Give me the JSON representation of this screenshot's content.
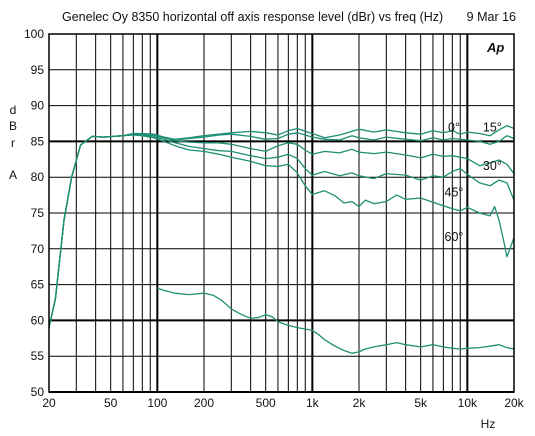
{
  "chart_data": {
    "type": "line",
    "title": "Genelec Oy 8350  horizontal off axis response level (dBr) vs freq (Hz)",
    "date": "9 Mar 16",
    "logo_text": "Ap",
    "xlabel": "Hz",
    "ylabel": [
      "d",
      "B",
      "r",
      "A"
    ],
    "x_scale": "log",
    "xlim": [
      20,
      20000
    ],
    "ylim": [
      50,
      100
    ],
    "grid": true,
    "line_color": "#1e8f74",
    "yticks": [
      "100",
      "95",
      "90",
      "85",
      "80",
      "75",
      "70",
      "65",
      "60",
      "55",
      "50"
    ],
    "xticks": [
      {
        "value": 20,
        "label": "20"
      },
      {
        "value": 50,
        "label": "50"
      },
      {
        "value": 100,
        "label": "100"
      },
      {
        "value": 200,
        "label": "200"
      },
      {
        "value": 500,
        "label": "500"
      },
      {
        "value": 1000,
        "label": "1k"
      },
      {
        "value": 2000,
        "label": "2k"
      },
      {
        "value": 5000,
        "label": "5k"
      },
      {
        "value": 10000,
        "label": "10k"
      },
      {
        "value": 20000,
        "label": "20k"
      }
    ],
    "annotations": [
      {
        "text": "0°",
        "x": 8200,
        "y": 86.4
      },
      {
        "text": "15°",
        "x": 14500,
        "y": 86.4
      },
      {
        "text": "30°",
        "x": 14500,
        "y": 81.0
      },
      {
        "text": "45°",
        "x": 8200,
        "y": 77.3
      },
      {
        "text": "60°",
        "x": 8200,
        "y": 71.1
      }
    ],
    "series": [
      {
        "name": "0°",
        "points": [
          [
            20,
            59
          ],
          [
            22,
            63
          ],
          [
            25,
            74
          ],
          [
            28,
            80
          ],
          [
            32,
            84.5
          ],
          [
            38,
            85.7
          ],
          [
            45,
            85.6
          ],
          [
            60,
            85.8
          ],
          [
            70,
            86.1
          ],
          [
            80,
            86.1
          ],
          [
            95,
            86.0
          ],
          [
            110,
            85.6
          ],
          [
            130,
            85.3
          ],
          [
            160,
            85.5
          ],
          [
            200,
            85.8
          ],
          [
            250,
            86.0
          ],
          [
            300,
            86.2
          ],
          [
            400,
            86.4
          ],
          [
            500,
            86.2
          ],
          [
            600,
            85.9
          ],
          [
            700,
            86.5
          ],
          [
            800,
            86.8
          ],
          [
            900,
            86.4
          ],
          [
            1000,
            86.1
          ],
          [
            1200,
            85.5
          ],
          [
            1500,
            85.9
          ],
          [
            1800,
            86.4
          ],
          [
            2000,
            86.7
          ],
          [
            2500,
            86.3
          ],
          [
            3000,
            86.6
          ],
          [
            4000,
            86.2
          ],
          [
            5000,
            86.0
          ],
          [
            6000,
            86.5
          ],
          [
            7000,
            86.2
          ],
          [
            8000,
            86.5
          ],
          [
            9000,
            86.0
          ],
          [
            10000,
            86.3
          ],
          [
            12000,
            86.1
          ],
          [
            14000,
            85.8
          ],
          [
            16000,
            86.6
          ],
          [
            18000,
            87.2
          ],
          [
            20000,
            86.8
          ]
        ]
      },
      {
        "name": "15°",
        "points": [
          [
            20,
            59
          ],
          [
            22,
            63
          ],
          [
            25,
            74
          ],
          [
            28,
            80
          ],
          [
            32,
            84.5
          ],
          [
            38,
            85.7
          ],
          [
            45,
            85.6
          ],
          [
            60,
            85.8
          ],
          [
            70,
            86.0
          ],
          [
            80,
            86.0
          ],
          [
            95,
            86.0
          ],
          [
            110,
            85.6
          ],
          [
            130,
            85.2
          ],
          [
            160,
            85.4
          ],
          [
            200,
            85.6
          ],
          [
            250,
            85.9
          ],
          [
            300,
            86.0
          ],
          [
            400,
            85.7
          ],
          [
            500,
            85.3
          ],
          [
            600,
            85.4
          ],
          [
            700,
            86.0
          ],
          [
            800,
            86.2
          ],
          [
            900,
            85.9
          ],
          [
            1000,
            85.6
          ],
          [
            1200,
            85.3
          ],
          [
            1500,
            85.2
          ],
          [
            1800,
            85.8
          ],
          [
            2000,
            85.5
          ],
          [
            2500,
            85.2
          ],
          [
            3000,
            85.6
          ],
          [
            4000,
            85.3
          ],
          [
            5000,
            85.1
          ],
          [
            6000,
            85.5
          ],
          [
            7000,
            85.2
          ],
          [
            8000,
            85.4
          ],
          [
            10000,
            85.2
          ],
          [
            12000,
            85.0
          ],
          [
            14000,
            84.6
          ],
          [
            16000,
            85.0
          ],
          [
            18000,
            85.8
          ],
          [
            20000,
            85.4
          ]
        ]
      },
      {
        "name": "30°",
        "points": [
          [
            20,
            59
          ],
          [
            22,
            63
          ],
          [
            25,
            74
          ],
          [
            28,
            80
          ],
          [
            32,
            84.5
          ],
          [
            38,
            85.7
          ],
          [
            45,
            85.6
          ],
          [
            60,
            85.8
          ],
          [
            70,
            86.0
          ],
          [
            80,
            86.0
          ],
          [
            95,
            85.8
          ],
          [
            110,
            85.5
          ],
          [
            130,
            85.1
          ],
          [
            160,
            84.9
          ],
          [
            200,
            84.8
          ],
          [
            250,
            84.8
          ],
          [
            300,
            84.6
          ],
          [
            400,
            84.0
          ],
          [
            500,
            83.6
          ],
          [
            600,
            84.4
          ],
          [
            700,
            84.8
          ],
          [
            800,
            84.6
          ],
          [
            900,
            83.8
          ],
          [
            1000,
            83.2
          ],
          [
            1200,
            83.6
          ],
          [
            1500,
            83.4
          ],
          [
            1800,
            83.9
          ],
          [
            2000,
            83.5
          ],
          [
            2500,
            83.3
          ],
          [
            3000,
            83.5
          ],
          [
            4000,
            83.1
          ],
          [
            5000,
            82.7
          ],
          [
            6000,
            83.2
          ],
          [
            7000,
            82.9
          ],
          [
            8000,
            83.0
          ],
          [
            10000,
            82.6
          ],
          [
            12000,
            81.6
          ],
          [
            14000,
            82.0
          ],
          [
            16000,
            82.4
          ],
          [
            18000,
            81.8
          ],
          [
            20000,
            80.5
          ]
        ]
      },
      {
        "name": "45°",
        "points": [
          [
            20,
            59
          ],
          [
            22,
            63
          ],
          [
            25,
            74
          ],
          [
            28,
            80
          ],
          [
            32,
            84.5
          ],
          [
            38,
            85.7
          ],
          [
            45,
            85.6
          ],
          [
            60,
            85.8
          ],
          [
            70,
            86.0
          ],
          [
            80,
            85.9
          ],
          [
            95,
            85.6
          ],
          [
            110,
            85.3
          ],
          [
            130,
            84.8
          ],
          [
            160,
            84.3
          ],
          [
            200,
            84.0
          ],
          [
            250,
            83.7
          ],
          [
            300,
            83.6
          ],
          [
            400,
            83.0
          ],
          [
            500,
            82.6
          ],
          [
            600,
            82.8
          ],
          [
            700,
            83.2
          ],
          [
            800,
            82.6
          ],
          [
            900,
            81.2
          ],
          [
            1000,
            80.3
          ],
          [
            1200,
            80.8
          ],
          [
            1500,
            80.2
          ],
          [
            1800,
            80.6
          ],
          [
            2000,
            80.2
          ],
          [
            2500,
            79.8
          ],
          [
            3000,
            80.5
          ],
          [
            4000,
            80.3
          ],
          [
            5000,
            79.6
          ],
          [
            6000,
            80.2
          ],
          [
            7000,
            80.0
          ],
          [
            8000,
            80.8
          ],
          [
            9000,
            81.2
          ],
          [
            10000,
            80.4
          ],
          [
            12000,
            79.2
          ],
          [
            14000,
            78.8
          ],
          [
            16000,
            79.6
          ],
          [
            18000,
            79.2
          ],
          [
            20000,
            76.8
          ]
        ]
      },
      {
        "name": "60°",
        "points": [
          [
            20,
            59
          ],
          [
            22,
            63
          ],
          [
            25,
            74
          ],
          [
            28,
            80
          ],
          [
            32,
            84.5
          ],
          [
            38,
            85.7
          ],
          [
            45,
            85.6
          ],
          [
            60,
            85.8
          ],
          [
            70,
            85.9
          ],
          [
            80,
            85.8
          ],
          [
            95,
            85.5
          ],
          [
            110,
            85.0
          ],
          [
            130,
            84.4
          ],
          [
            160,
            83.8
          ],
          [
            200,
            83.6
          ],
          [
            250,
            83.2
          ],
          [
            300,
            82.8
          ],
          [
            400,
            82.2
          ],
          [
            500,
            81.6
          ],
          [
            600,
            81.5
          ],
          [
            700,
            81.8
          ],
          [
            800,
            80.6
          ],
          [
            900,
            78.8
          ],
          [
            1000,
            77.6
          ],
          [
            1200,
            78.1
          ],
          [
            1400,
            77.4
          ],
          [
            1600,
            76.4
          ],
          [
            1800,
            76.6
          ],
          [
            2000,
            75.9
          ],
          [
            2200,
            76.8
          ],
          [
            2500,
            76.3
          ],
          [
            3000,
            76.6
          ],
          [
            3500,
            77.5
          ],
          [
            4000,
            76.9
          ],
          [
            5000,
            77.1
          ],
          [
            6000,
            76.5
          ],
          [
            7000,
            76.0
          ],
          [
            8000,
            75.6
          ],
          [
            9000,
            75.3
          ],
          [
            10000,
            75.8
          ],
          [
            12000,
            75.0
          ],
          [
            14000,
            74.6
          ],
          [
            15000,
            75.9
          ],
          [
            16000,
            74.0
          ],
          [
            17000,
            71.5
          ],
          [
            18000,
            68.9
          ],
          [
            19000,
            70.2
          ],
          [
            20000,
            71.6
          ]
        ]
      },
      {
        "name": "",
        "points": [
          [
            100,
            64.5
          ],
          [
            110,
            64.2
          ],
          [
            130,
            63.8
          ],
          [
            160,
            63.6
          ],
          [
            200,
            63.8
          ],
          [
            230,
            63.5
          ],
          [
            260,
            62.8
          ],
          [
            300,
            61.6
          ],
          [
            350,
            60.8
          ],
          [
            400,
            60.3
          ],
          [
            450,
            60.4
          ],
          [
            500,
            60.8
          ],
          [
            550,
            60.5
          ],
          [
            600,
            59.8
          ],
          [
            700,
            59.3
          ],
          [
            800,
            59.0
          ],
          [
            900,
            58.8
          ],
          [
            1000,
            58.6
          ],
          [
            1100,
            58.0
          ],
          [
            1200,
            57.3
          ],
          [
            1400,
            56.4
          ],
          [
            1600,
            55.8
          ],
          [
            1800,
            55.4
          ],
          [
            2000,
            55.6
          ],
          [
            2200,
            56.0
          ],
          [
            2500,
            56.3
          ],
          [
            3000,
            56.6
          ],
          [
            3500,
            56.9
          ],
          [
            4000,
            56.6
          ],
          [
            5000,
            56.3
          ],
          [
            6000,
            56.6
          ],
          [
            7000,
            56.3
          ],
          [
            8000,
            56.1
          ],
          [
            9000,
            56.0
          ],
          [
            10000,
            56.1
          ],
          [
            12000,
            56.2
          ],
          [
            14000,
            56.4
          ],
          [
            16000,
            56.6
          ],
          [
            18000,
            56.2
          ],
          [
            20000,
            56.0
          ]
        ]
      }
    ]
  }
}
